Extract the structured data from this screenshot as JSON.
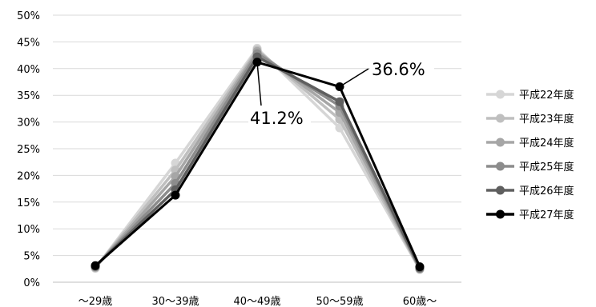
{
  "chart_data": {
    "type": "line",
    "title": "",
    "xlabel": "",
    "ylabel": "",
    "categories": [
      "～29歳",
      "30～39歳",
      "40～49歳",
      "50～59歳",
      "60歳～"
    ],
    "ylim": [
      0,
      50
    ],
    "y_ticks": [
      0,
      5,
      10,
      15,
      20,
      25,
      30,
      35,
      40,
      45,
      50
    ],
    "y_tick_suffix": "%",
    "grid": true,
    "legend_position": "right",
    "series": [
      {
        "name": "平成22年度",
        "color": "#d6d6d6",
        "values": [
          2.6,
          22.3,
          43.8,
          28.9,
          2.4
        ]
      },
      {
        "name": "平成23年度",
        "color": "#bfbfbf",
        "values": [
          2.7,
          21.0,
          43.5,
          30.5,
          2.4
        ]
      },
      {
        "name": "平成24年度",
        "color": "#a6a6a6",
        "values": [
          2.8,
          19.8,
          43.2,
          31.8,
          2.5
        ]
      },
      {
        "name": "平成25年度",
        "color": "#8c8c8c",
        "values": [
          2.9,
          18.5,
          42.8,
          33.0,
          2.6
        ]
      },
      {
        "name": "平成26年度",
        "color": "#5f5f5f",
        "values": [
          3.0,
          17.3,
          42.2,
          33.8,
          2.7
        ]
      },
      {
        "name": "平成27年度",
        "color": "#000000",
        "values": [
          3.1,
          16.3,
          41.2,
          36.6,
          2.9
        ]
      }
    ],
    "annotations": [
      {
        "text": "41.2%",
        "series": "平成27年度",
        "category": "40～49歳"
      },
      {
        "text": "36.6%",
        "series": "平成27年度",
        "category": "50～59歳"
      }
    ]
  }
}
